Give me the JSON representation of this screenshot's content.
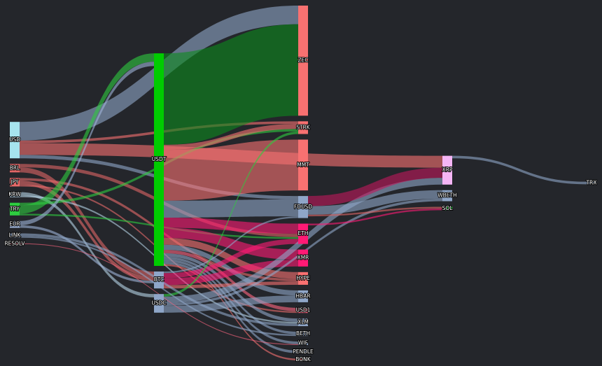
{
  "chart_data": {
    "type": "sankey",
    "nodes": [
      {
        "name": "USD",
        "color": "#a6e4ee"
      },
      {
        "name": "BRL",
        "color": "#e06666"
      },
      {
        "name": "JPY",
        "color": "#e86a6a"
      },
      {
        "name": "KRW",
        "color": "#b5d3e6"
      },
      {
        "name": "TRY",
        "color": "#2ecc40"
      },
      {
        "name": "EUR",
        "color": "#9fb4d8"
      },
      {
        "name": "USDT",
        "color": "#00cc00"
      },
      {
        "name": "BTC",
        "color": "#8fa6c8"
      },
      {
        "name": "USDC",
        "color": "#8fa6c8"
      },
      {
        "name": "LINK",
        "color": "#8fa6c8"
      },
      {
        "name": "RESOLV",
        "color": "#ff6680"
      },
      {
        "name": "ZEC",
        "color": "#f87171"
      },
      {
        "name": "STRK",
        "color": "#f87171"
      },
      {
        "name": "MMT",
        "color": "#f87171"
      },
      {
        "name": "FDUSD",
        "color": "#8fa6c8"
      },
      {
        "name": "ETH",
        "color": "#ff1a75"
      },
      {
        "name": "XMR",
        "color": "#ff1a75"
      },
      {
        "name": "HYPE",
        "color": "#f87171"
      },
      {
        "name": "HBAR",
        "color": "#8fa6c8"
      },
      {
        "name": "USD1",
        "color": "#ff6680"
      },
      {
        "name": "XLM",
        "color": "#8fa6c8"
      },
      {
        "name": "BETH",
        "color": "#8fa6c8"
      },
      {
        "name": "WIF",
        "color": "#8fa6c8"
      },
      {
        "name": "PENDLE",
        "color": "#8fa6c8"
      },
      {
        "name": "BONK",
        "color": "#f87171"
      },
      {
        "name": "XRP",
        "color": "#f5b5f5"
      },
      {
        "name": "WBETH",
        "color": "#8fa6c8"
      },
      {
        "name": "SOL",
        "color": "#2ecc40"
      },
      {
        "name": "TRX",
        "color": "#8fa6c8"
      }
    ],
    "links": [
      {
        "source": 0,
        "target": 11,
        "value": 22,
        "color": "#8fa6c8"
      },
      {
        "source": 0,
        "target": 25,
        "value": 14,
        "color": "#f87171"
      },
      {
        "source": 0,
        "target": 12,
        "value": 3,
        "color": "#f87171"
      },
      {
        "source": 0,
        "target": 14,
        "value": 4,
        "color": "#8fa6c8"
      },
      {
        "source": 1,
        "target": 7,
        "value": 6,
        "color": "#e06666"
      },
      {
        "source": 1,
        "target": 15,
        "value": 4,
        "color": "#e06666"
      },
      {
        "source": 2,
        "target": 7,
        "value": 5,
        "color": "#e86a6a"
      },
      {
        "source": 2,
        "target": 17,
        "value": 3,
        "color": "#e86a6a"
      },
      {
        "source": 2,
        "target": 19,
        "value": 2,
        "color": "#e86a6a"
      },
      {
        "source": 3,
        "target": 8,
        "value": 4,
        "color": "#b5d3e6"
      },
      {
        "source": 3,
        "target": 20,
        "value": 2,
        "color": "#b5d3e6"
      },
      {
        "source": 4,
        "target": 6,
        "value": 10,
        "color": "#2ecc40"
      },
      {
        "source": 4,
        "target": 12,
        "value": 3,
        "color": "#2ecc40"
      },
      {
        "source": 4,
        "target": 15,
        "value": 2,
        "color": "#2ecc40"
      },
      {
        "source": 5,
        "target": 6,
        "value": 5,
        "color": "#9fb4d8"
      },
      {
        "source": 5,
        "target": 7,
        "value": 3,
        "color": "#9fb4d8"
      },
      {
        "source": 6,
        "target": 11,
        "value": 108,
        "color": "#0c8a1c"
      },
      {
        "source": 6,
        "target": 12,
        "value": 6,
        "color": "#f87171"
      },
      {
        "source": 6,
        "target": 13,
        "value": 60,
        "color": "#f87171"
      },
      {
        "source": 6,
        "target": 14,
        "value": 20,
        "color": "#8fa6c8"
      },
      {
        "source": 6,
        "target": 15,
        "value": 12,
        "color": "#ff1a75"
      },
      {
        "source": 6,
        "target": 16,
        "value": 12,
        "color": "#ff1a75"
      },
      {
        "source": 6,
        "target": 17,
        "value": 8,
        "color": "#f87171"
      },
      {
        "source": 6,
        "target": 18,
        "value": 6,
        "color": "#8fa6c8"
      },
      {
        "source": 6,
        "target": 19,
        "value": 4,
        "color": "#ff6680"
      },
      {
        "source": 6,
        "target": 20,
        "value": 4,
        "color": "#8fa6c8"
      },
      {
        "source": 6,
        "target": 21,
        "value": 3,
        "color": "#8fa6c8"
      },
      {
        "source": 6,
        "target": 22,
        "value": 3,
        "color": "#8fa6c8"
      },
      {
        "source": 6,
        "target": 23,
        "value": 3,
        "color": "#8fa6c8"
      },
      {
        "source": 6,
        "target": 24,
        "value": 2,
        "color": "#f87171"
      },
      {
        "source": 7,
        "target": 14,
        "value": 2,
        "color": "#8fa6c8"
      },
      {
        "source": 7,
        "target": 15,
        "value": 6,
        "color": "#ff1a75"
      },
      {
        "source": 7,
        "target": 16,
        "value": 8,
        "color": "#ff1a75"
      },
      {
        "source": 7,
        "target": 17,
        "value": 4,
        "color": "#f87171"
      },
      {
        "source": 8,
        "target": 12,
        "value": 3,
        "color": "#2ecc40"
      },
      {
        "source": 8,
        "target": 18,
        "value": 8,
        "color": "#8fa6c8"
      },
      {
        "source": 8,
        "target": 25,
        "value": 8,
        "color": "#8fa6c8"
      },
      {
        "source": 8,
        "target": 26,
        "value": 3,
        "color": "#8fa6c8"
      },
      {
        "source": 9,
        "target": 20,
        "value": 3,
        "color": "#8fa6c8"
      },
      {
        "source": 9,
        "target": 21,
        "value": 2,
        "color": "#8fa6c8"
      },
      {
        "source": 10,
        "target": 22,
        "value": 1,
        "color": "#ff6680"
      },
      {
        "source": 14,
        "target": 25,
        "value": 12,
        "color": "#c2185b"
      },
      {
        "source": 14,
        "target": 26,
        "value": 10,
        "color": "#8fa6c8"
      },
      {
        "source": 14,
        "target": 27,
        "value": 2,
        "color": "#e06666"
      },
      {
        "source": 15,
        "target": 27,
        "value": 2,
        "color": "#ff1a75"
      },
      {
        "source": 25,
        "target": 28,
        "value": 3,
        "color": "#8fa6c8"
      }
    ]
  }
}
